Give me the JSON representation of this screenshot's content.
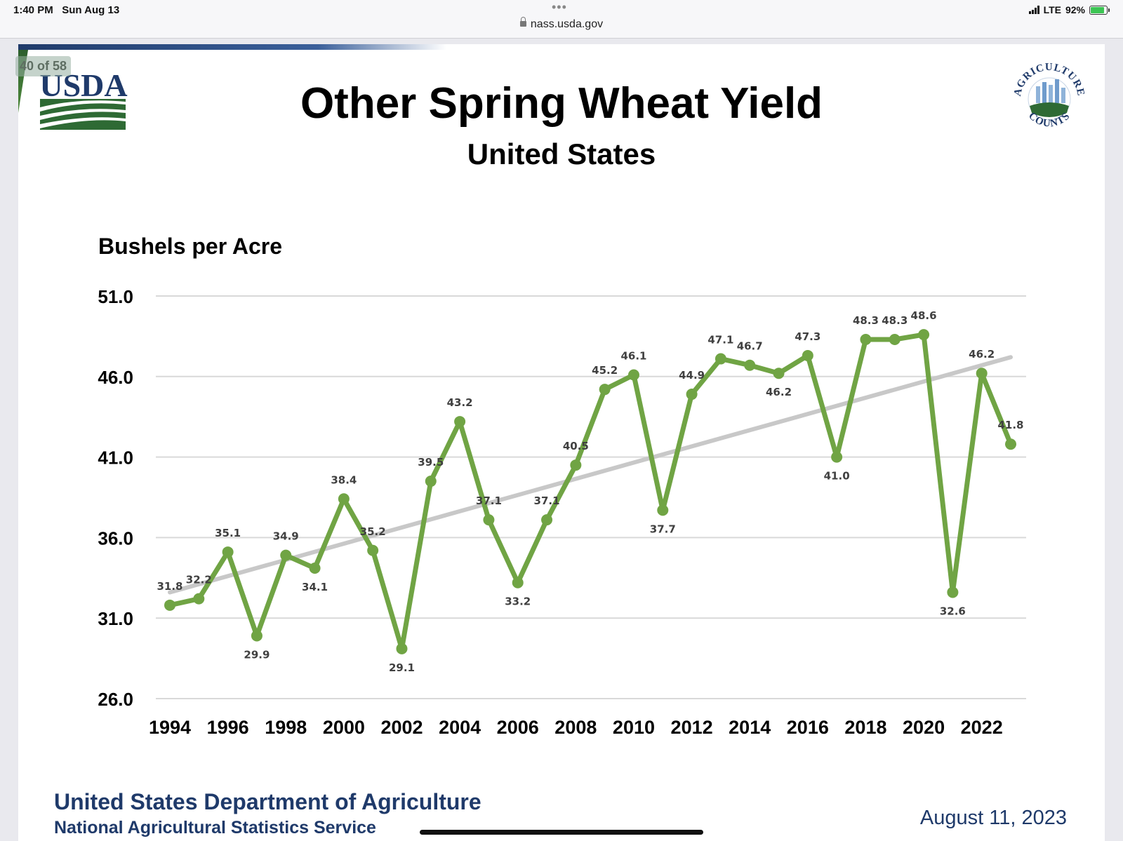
{
  "status_bar": {
    "time": "1:40 PM",
    "date": "Sun Aug 13",
    "dots": "•••",
    "url": "nass.usda.gov",
    "network": "LTE",
    "battery": "92%"
  },
  "page_badge": "40 of 58",
  "logos": {
    "usda": "USDA",
    "agriculture_counts_top": "AGRICULTURE",
    "agriculture_counts_bottom": "COUNTS"
  },
  "footer": {
    "department": "United States Department of Agriculture",
    "service": "National Agricultural Statistics Service",
    "date": "August 11, 2023"
  },
  "colors": {
    "line": "#70a444",
    "trend": "#c8c8c8",
    "grid": "#d9d9d9",
    "footer_blue": "#1f3a6a"
  },
  "chart_data": {
    "type": "line",
    "title": "Other Spring Wheat Yield",
    "subtitle": "United States",
    "ylabel": "Bushels per Acre",
    "xlabel": "",
    "ylim": [
      26.0,
      51.0
    ],
    "yticks": [
      "26.0",
      "31.0",
      "36.0",
      "41.0",
      "46.0",
      "51.0"
    ],
    "xticks": [
      "1994",
      "1996",
      "1998",
      "2000",
      "2002",
      "2004",
      "2006",
      "2008",
      "2010",
      "2012",
      "2014",
      "2016",
      "2018",
      "2020",
      "2022"
    ],
    "grid": true,
    "series": [
      {
        "name": "Yield",
        "x": [
          1994,
          1995,
          1996,
          1997,
          1998,
          1999,
          2000,
          2001,
          2002,
          2003,
          2004,
          2005,
          2006,
          2007,
          2008,
          2009,
          2010,
          2011,
          2012,
          2013,
          2014,
          2015,
          2016,
          2017,
          2018,
          2019,
          2020,
          2021,
          2022,
          2023
        ],
        "values": [
          31.8,
          32.2,
          35.1,
          29.9,
          34.9,
          34.1,
          38.4,
          35.2,
          29.1,
          39.5,
          43.2,
          37.1,
          33.2,
          37.1,
          40.5,
          45.2,
          46.1,
          37.7,
          44.9,
          47.1,
          46.7,
          46.2,
          47.3,
          41.0,
          48.3,
          48.3,
          48.6,
          32.6,
          46.2,
          41.8
        ],
        "labels": [
          "31.8",
          "32.2",
          "35.1",
          "29.9",
          "34.9",
          "34.1",
          "38.4",
          "35.2",
          "29.1",
          "39.5",
          "43.2",
          "37.1",
          "33.2",
          "37.1",
          "40.5",
          "45.2",
          "46.1",
          "37.7",
          "44.9",
          "47.1",
          "46.7",
          "46.2",
          "47.3",
          "41.0",
          "48.3",
          "48.3",
          "48.6",
          "32.6",
          "46.2",
          "41.8"
        ]
      }
    ],
    "trendline": {
      "x": [
        1994,
        2023
      ],
      "values": [
        32.6,
        47.2
      ]
    }
  }
}
